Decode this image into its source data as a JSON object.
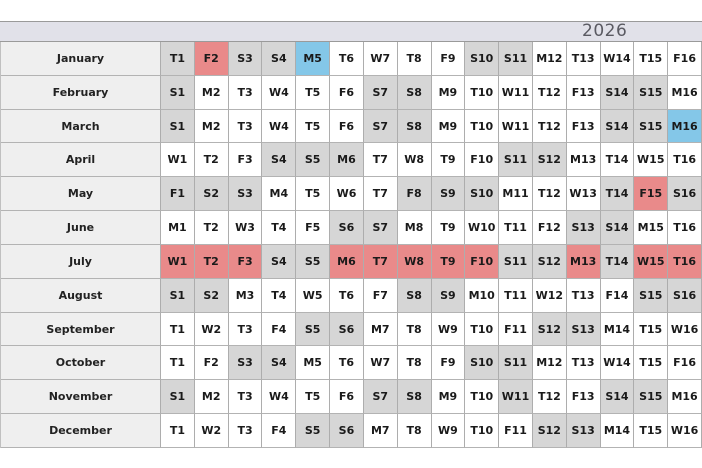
{
  "header": {
    "year": "2026"
  },
  "colors": {
    "workday": "#ffffff",
    "weekend_or_holiday": "#d6d6d6",
    "vacation_red": "#e98a8a",
    "special_blue": "#84c7e8",
    "band_bg": "#e1e1e9",
    "month_col_bg": "#efefef"
  },
  "type_legend": {
    "w": "workday",
    "g": "weekend-or-holiday",
    "r": "vacation-red",
    "b": "special-blue"
  },
  "months": [
    {
      "name": "January",
      "labels": [
        "T1",
        "F2",
        "S3",
        "S4",
        "M5",
        "T6",
        "W7",
        "T8",
        "F9",
        "S10",
        "S11",
        "M12",
        "T13",
        "W14",
        "T15",
        "F16"
      ],
      "types": [
        "g",
        "r",
        "g",
        "g",
        "b",
        "w",
        "w",
        "w",
        "w",
        "g",
        "g",
        "w",
        "w",
        "w",
        "w",
        "w"
      ]
    },
    {
      "name": "February",
      "labels": [
        "S1",
        "M2",
        "T3",
        "W4",
        "T5",
        "F6",
        "S7",
        "S8",
        "M9",
        "T10",
        "W11",
        "T12",
        "F13",
        "S14",
        "S15",
        "M16"
      ],
      "types": [
        "g",
        "w",
        "w",
        "w",
        "w",
        "w",
        "g",
        "g",
        "w",
        "w",
        "w",
        "w",
        "w",
        "g",
        "g",
        "w"
      ]
    },
    {
      "name": "March",
      "labels": [
        "S1",
        "M2",
        "T3",
        "W4",
        "T5",
        "F6",
        "S7",
        "S8",
        "M9",
        "T10",
        "W11",
        "T12",
        "F13",
        "S14",
        "S15",
        "M16"
      ],
      "types": [
        "g",
        "w",
        "w",
        "w",
        "w",
        "w",
        "g",
        "g",
        "w",
        "w",
        "w",
        "w",
        "w",
        "g",
        "g",
        "b"
      ]
    },
    {
      "name": "April",
      "labels": [
        "W1",
        "T2",
        "F3",
        "S4",
        "S5",
        "M6",
        "T7",
        "W8",
        "T9",
        "F10",
        "S11",
        "S12",
        "M13",
        "T14",
        "W15",
        "T16"
      ],
      "types": [
        "w",
        "w",
        "w",
        "g",
        "g",
        "g",
        "w",
        "w",
        "w",
        "w",
        "g",
        "g",
        "w",
        "w",
        "w",
        "w"
      ]
    },
    {
      "name": "May",
      "labels": [
        "F1",
        "S2",
        "S3",
        "M4",
        "T5",
        "W6",
        "T7",
        "F8",
        "S9",
        "S10",
        "M11",
        "T12",
        "W13",
        "T14",
        "F15",
        "S16"
      ],
      "types": [
        "g",
        "g",
        "g",
        "w",
        "w",
        "w",
        "w",
        "g",
        "g",
        "g",
        "w",
        "w",
        "w",
        "g",
        "r",
        "g"
      ]
    },
    {
      "name": "June",
      "labels": [
        "M1",
        "T2",
        "W3",
        "T4",
        "F5",
        "S6",
        "S7",
        "M8",
        "T9",
        "W10",
        "T11",
        "F12",
        "S13",
        "S14",
        "M15",
        "T16"
      ],
      "types": [
        "w",
        "w",
        "w",
        "w",
        "w",
        "g",
        "g",
        "w",
        "w",
        "w",
        "w",
        "w",
        "g",
        "g",
        "w",
        "w"
      ]
    },
    {
      "name": "July",
      "labels": [
        "W1",
        "T2",
        "F3",
        "S4",
        "S5",
        "M6",
        "T7",
        "W8",
        "T9",
        "F10",
        "S11",
        "S12",
        "M13",
        "T14",
        "W15",
        "T16"
      ],
      "types": [
        "r",
        "r",
        "r",
        "g",
        "g",
        "r",
        "r",
        "r",
        "r",
        "r",
        "g",
        "g",
        "r",
        "g",
        "r",
        "r"
      ]
    },
    {
      "name": "August",
      "labels": [
        "S1",
        "S2",
        "M3",
        "T4",
        "W5",
        "T6",
        "F7",
        "S8",
        "S9",
        "M10",
        "T11",
        "W12",
        "T13",
        "F14",
        "S15",
        "S16"
      ],
      "types": [
        "g",
        "g",
        "w",
        "w",
        "w",
        "w",
        "w",
        "g",
        "g",
        "w",
        "w",
        "w",
        "w",
        "w",
        "g",
        "g"
      ]
    },
    {
      "name": "September",
      "labels": [
        "T1",
        "W2",
        "T3",
        "F4",
        "S5",
        "S6",
        "M7",
        "T8",
        "W9",
        "T10",
        "F11",
        "S12",
        "S13",
        "M14",
        "T15",
        "W16"
      ],
      "types": [
        "w",
        "w",
        "w",
        "w",
        "g",
        "g",
        "w",
        "w",
        "w",
        "w",
        "w",
        "g",
        "g",
        "w",
        "w",
        "w"
      ]
    },
    {
      "name": "October",
      "labels": [
        "T1",
        "F2",
        "S3",
        "S4",
        "M5",
        "T6",
        "W7",
        "T8",
        "F9",
        "S10",
        "S11",
        "M12",
        "T13",
        "W14",
        "T15",
        "F16"
      ],
      "types": [
        "w",
        "w",
        "g",
        "g",
        "w",
        "w",
        "w",
        "w",
        "w",
        "g",
        "g",
        "w",
        "w",
        "w",
        "w",
        "w"
      ]
    },
    {
      "name": "November",
      "labels": [
        "S1",
        "M2",
        "T3",
        "W4",
        "T5",
        "F6",
        "S7",
        "S8",
        "M9",
        "T10",
        "W11",
        "T12",
        "F13",
        "S14",
        "S15",
        "M16"
      ],
      "types": [
        "g",
        "w",
        "w",
        "w",
        "w",
        "w",
        "g",
        "g",
        "w",
        "w",
        "g",
        "w",
        "w",
        "g",
        "g",
        "w"
      ]
    },
    {
      "name": "December",
      "labels": [
        "T1",
        "W2",
        "T3",
        "F4",
        "S5",
        "S6",
        "M7",
        "T8",
        "W9",
        "T10",
        "F11",
        "S12",
        "S13",
        "M14",
        "T15",
        "W16"
      ],
      "types": [
        "w",
        "w",
        "w",
        "w",
        "g",
        "g",
        "w",
        "w",
        "w",
        "w",
        "w",
        "g",
        "g",
        "w",
        "w",
        "w"
      ]
    }
  ]
}
